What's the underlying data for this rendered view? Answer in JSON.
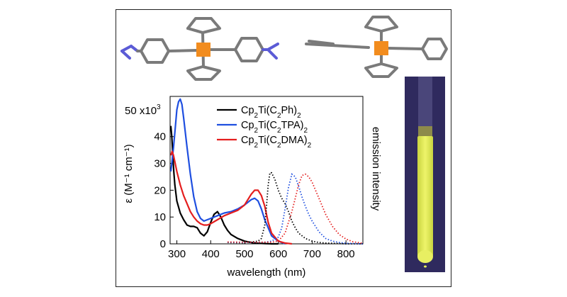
{
  "figure": {
    "vial_photo_alt": "yellow-emitting vial under UV light",
    "molecule_left": "Cp2Ti(C2DMA)2 crystal structure",
    "molecule_right": "Cp2Ti(C2Ph)2 crystal structure",
    "colors": {
      "ti_atom": "#f28c1e",
      "bond_gray": "#7a7a7a",
      "nitrogen": "#5b5bd6",
      "vial_bg": "#2f2a5e",
      "vial_liquid": "#e6f05a"
    }
  },
  "chart_data": {
    "type": "line",
    "xlabel": "wavelength (nm)",
    "ylabel": "ε (M⁻¹ cm⁻¹)",
    "ylabel_right": "emission intensity",
    "y_top_label": "50 x10",
    "y_top_exp": "3",
    "xlim": [
      280,
      850
    ],
    "ylim": [
      0,
      55
    ],
    "x_ticks": [
      300,
      400,
      500,
      600,
      700,
      800
    ],
    "y_ticks": [
      0,
      10,
      20,
      30,
      40
    ],
    "legend": {
      "position": "top-right",
      "entries": [
        {
          "color": "#000000",
          "parts": [
            [
              "t",
              "Cp"
            ],
            [
              "s",
              "2"
            ],
            [
              "t",
              "Ti(C"
            ],
            [
              "s",
              "2"
            ],
            [
              "t",
              "Ph)"
            ],
            [
              "s",
              "2"
            ]
          ]
        },
        {
          "color": "#1f4fe0",
          "parts": [
            [
              "t",
              "Cp"
            ],
            [
              "s",
              "2"
            ],
            [
              "t",
              "Ti(C"
            ],
            [
              "s",
              "2"
            ],
            [
              "t",
              "TPA)"
            ],
            [
              "s",
              "2"
            ]
          ]
        },
        {
          "color": "#e41e1e",
          "parts": [
            [
              "t",
              "Cp"
            ],
            [
              "s",
              "2"
            ],
            [
              "t",
              "Ti(C"
            ],
            [
              "s",
              "2"
            ],
            [
              "t",
              "DMA)"
            ],
            [
              "s",
              "2"
            ]
          ]
        }
      ]
    },
    "series": [
      {
        "name": "Cp2Ti(C2Ph)2",
        "kind": "absorption",
        "color": "#000000",
        "x": [
          282,
          285,
          288,
          291,
          294,
          300,
          310,
          320,
          330,
          340,
          350,
          360,
          370,
          380,
          390,
          400,
          410,
          420,
          430,
          440,
          450,
          460,
          480,
          500,
          520,
          540,
          560,
          580,
          600
        ],
        "y": [
          44,
          40,
          33,
          27,
          22,
          16,
          11.5,
          9,
          7,
          6.5,
          6.5,
          6,
          4,
          3,
          4.5,
          8,
          11,
          12,
          10,
          7,
          5,
          3.5,
          2,
          1,
          0.5,
          0.2,
          0.1,
          0,
          0
        ]
      },
      {
        "name": "Cp2Ti(C2TPA)2",
        "kind": "absorption",
        "color": "#1f4fe0",
        "x": [
          282,
          285,
          290,
          295,
          300,
          305,
          310,
          315,
          320,
          330,
          340,
          350,
          360,
          370,
          380,
          390,
          400,
          420,
          440,
          460,
          480,
          500,
          520,
          530,
          540,
          550,
          560,
          580,
          600,
          620
        ],
        "y": [
          27,
          30,
          36,
          43,
          50,
          53,
          54,
          52,
          47,
          36,
          26,
          17.5,
          12,
          9.5,
          8.5,
          9,
          9.5,
          10.5,
          11.5,
          12,
          13,
          14.5,
          16.5,
          17,
          16,
          13,
          9,
          3,
          1,
          0
        ]
      },
      {
        "name": "Cp2Ti(C2DMA)2",
        "kind": "absorption",
        "color": "#e41e1e",
        "x": [
          282,
          286,
          290,
          295,
          300,
          310,
          320,
          330,
          340,
          350,
          360,
          370,
          380,
          390,
          400,
          420,
          440,
          460,
          480,
          500,
          520,
          530,
          540,
          550,
          560,
          570,
          580,
          600,
          620,
          640
        ],
        "y": [
          33,
          34.5,
          33,
          30,
          27,
          22,
          18,
          15,
          12,
          10,
          8.5,
          7.5,
          7,
          7,
          7.5,
          9,
          10.5,
          11.5,
          12.5,
          14.5,
          18.5,
          20,
          20,
          18,
          14,
          8,
          4,
          1,
          0.3,
          0
        ]
      },
      {
        "name": "Cp2Ti(C2Ph)2 emission",
        "kind": "emission",
        "color": "#000000",
        "x": [
          450,
          500,
          540,
          550,
          560,
          565,
          570,
          575,
          580,
          590,
          600,
          610,
          620,
          630,
          640,
          650,
          660,
          680,
          700,
          720,
          740,
          760,
          780,
          800,
          850
        ],
        "y": [
          0.5,
          0.4,
          1,
          2,
          7,
          14,
          22,
          26.5,
          26.5,
          24,
          20,
          17,
          15,
          12,
          8.5,
          6,
          4,
          2,
          1,
          0.5,
          0.3,
          0.2,
          0.1,
          0,
          0
        ]
      },
      {
        "name": "Cp2Ti(C2TPA)2 emission",
        "kind": "emission",
        "color": "#1f4fe0",
        "x": [
          450,
          500,
          560,
          580,
          600,
          610,
          620,
          630,
          640,
          650,
          660,
          670,
          680,
          690,
          700,
          720,
          740,
          760,
          780,
          800,
          850
        ],
        "y": [
          0.6,
          0.5,
          0.6,
          1,
          2.5,
          6,
          13,
          21,
          26,
          25,
          21.5,
          17.5,
          14,
          11,
          8.5,
          4.5,
          2,
          1,
          0.5,
          0.2,
          0
        ]
      },
      {
        "name": "Cp2Ti(C2DMA)2 emission",
        "kind": "emission",
        "color": "#e41e1e",
        "x": [
          450,
          500,
          580,
          600,
          620,
          640,
          650,
          660,
          670,
          680,
          690,
          700,
          720,
          740,
          760,
          780,
          800,
          820,
          850
        ],
        "y": [
          0.7,
          0.6,
          0.6,
          1,
          4,
          12,
          17,
          22,
          25.5,
          26,
          25,
          23,
          17,
          11,
          6.5,
          3.5,
          1.8,
          0.8,
          0.2
        ]
      }
    ]
  }
}
